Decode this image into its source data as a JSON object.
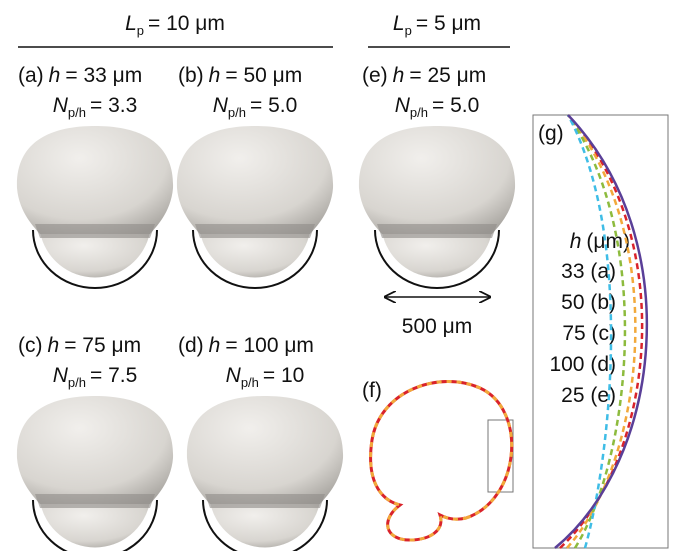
{
  "groups": [
    {
      "symbol": "L",
      "sub": "p",
      "value": "= 10 μm"
    },
    {
      "symbol": "L",
      "sub": "p",
      "value": "= 5 μm"
    }
  ],
  "panels": [
    {
      "label": "(a)",
      "h": "h",
      "h_value": "= 33 μm",
      "n": "N",
      "n_sub": "p/h",
      "n_value": "= 3.3"
    },
    {
      "label": "(b)",
      "h": "h",
      "h_value": "= 50 μm",
      "n": "N",
      "n_sub": "p/h",
      "n_value": "= 5.0"
    },
    {
      "label": "(e)",
      "h": "h",
      "h_value": "= 25 μm",
      "n": "N",
      "n_sub": "p/h",
      "n_value": "= 5.0"
    },
    {
      "label": "(c)",
      "h": "h",
      "h_value": "= 75 μm",
      "n": "N",
      "n_sub": "p/h",
      "n_value": "= 7.5"
    },
    {
      "label": "(d)",
      "h": "h",
      "h_value": "= 100 μm",
      "n": "N",
      "n_sub": "p/h",
      "n_value": "= 10"
    }
  ],
  "scale_bar": "500 μm",
  "panel_f": "(f)",
  "panel_g": "(g)",
  "legend": {
    "title_symbol": "h",
    "title_unit": "(μm)",
    "entries": [
      {
        "label": "33 (a)",
        "color": "#d9232b"
      },
      {
        "label": "50 (b)",
        "color": "#f2a93b"
      },
      {
        "label": "75 (c)",
        "color": "#8dbb3e"
      },
      {
        "label": "100 (d)",
        "color": "#3fbde6"
      },
      {
        "label": "25 (e)",
        "color": "#5a3f98"
      }
    ]
  }
}
